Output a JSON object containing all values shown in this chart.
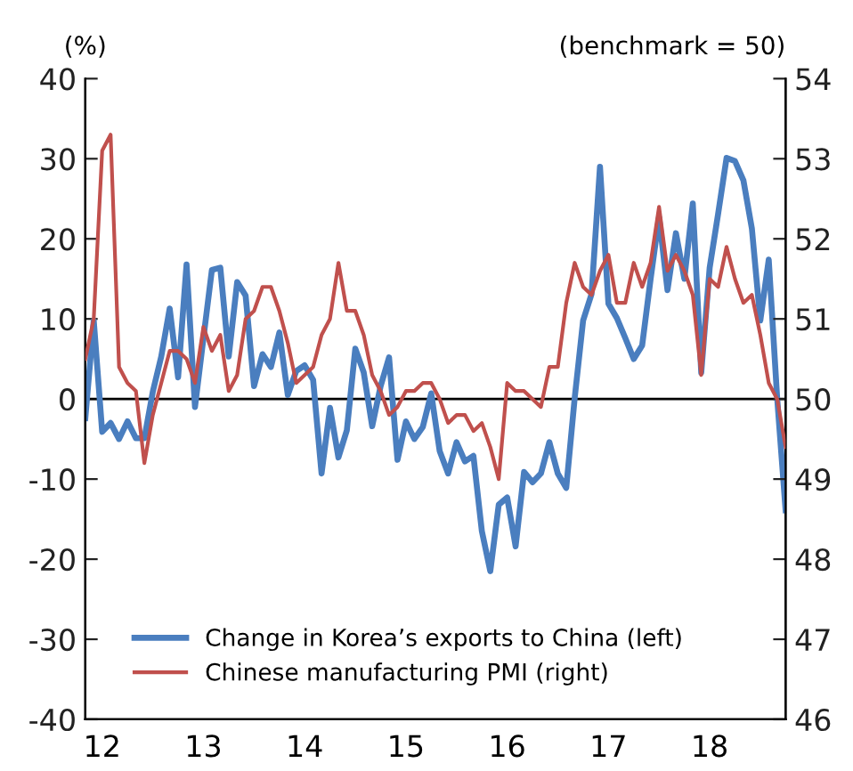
{
  "chart_data": {
    "type": "line",
    "ylabel": "(%)",
    "y2label": "(benchmark = 50)",
    "x": [
      "2012-01",
      "2012-02",
      "2012-03",
      "2012-04",
      "2012-05",
      "2012-06",
      "2012-07",
      "2012-08",
      "2012-09",
      "2012-10",
      "2012-11",
      "2012-12",
      "2013-01",
      "2013-02",
      "2013-03",
      "2013-04",
      "2013-05",
      "2013-06",
      "2013-07",
      "2013-08",
      "2013-09",
      "2013-10",
      "2013-11",
      "2013-12",
      "2014-01",
      "2014-02",
      "2014-03",
      "2014-04",
      "2014-05",
      "2014-06",
      "2014-07",
      "2014-08",
      "2014-09",
      "2014-10",
      "2014-11",
      "2014-12",
      "2015-01",
      "2015-02",
      "2015-03",
      "2015-04",
      "2015-05",
      "2015-06",
      "2015-07",
      "2015-08",
      "2015-09",
      "2015-10",
      "2015-11",
      "2015-12",
      "2016-01",
      "2016-02",
      "2016-03",
      "2016-04",
      "2016-05",
      "2016-06",
      "2016-07",
      "2016-08",
      "2016-09",
      "2016-10",
      "2016-11",
      "2016-12",
      "2017-01",
      "2017-02",
      "2017-03",
      "2017-04",
      "2017-05",
      "2017-06",
      "2017-07",
      "2017-08",
      "2017-09",
      "2017-10",
      "2017-11",
      "2017-12",
      "2018-01",
      "2018-02",
      "2018-03",
      "2018-04",
      "2018-05",
      "2018-06",
      "2018-07",
      "2018-08",
      "2018-09",
      "2018-10",
      "2018-11",
      "2018-12"
    ],
    "series": [
      {
        "name": "Change in Korea’s exports to China (left)",
        "color": "#4a7ebf",
        "values": [
          -2.4,
          9.8,
          -4.1,
          -3,
          -5,
          -2.8,
          -4.9,
          -4.9,
          0.9,
          5.3,
          11.3,
          2.7,
          16.8,
          -1,
          7.6,
          16.1,
          16.4,
          5.3,
          14.6,
          12.9,
          1.6,
          5.6,
          4,
          8.3,
          0.5,
          3.5,
          4.2,
          2.4,
          -9.3,
          -1.1,
          -7.3,
          -3.9,
          6.3,
          3.3,
          -3.4,
          1.6,
          5.2,
          -7.6,
          -2.8,
          -5,
          -3.5,
          0.7,
          -6.5,
          -9.3,
          -5.4,
          -7.8,
          -7.1,
          -16.5,
          -21.5,
          -13.2,
          -12.3,
          -18.4,
          -9.1,
          -10.4,
          -9.3,
          -5.4,
          -9.3,
          -11.1,
          0.1,
          9.8,
          13.1,
          29,
          11.9,
          10.1,
          7.6,
          5,
          6.7,
          15,
          22.7,
          13.6,
          20.7,
          15,
          24.4,
          3.3,
          16.4,
          23.1,
          30.1,
          29.7,
          27.3,
          21.3,
          9.8,
          17.4,
          0.1,
          -13.9
        ]
      },
      {
        "name": "Chinese manufacturing PMI (right)",
        "color": "#c0504d",
        "axis": "y2",
        "values": [
          50.5,
          51.0,
          53.1,
          53.3,
          50.4,
          50.2,
          50.1,
          49.2,
          49.8,
          50.2,
          50.6,
          50.6,
          50.5,
          50.2,
          50.9,
          50.6,
          50.8,
          50.1,
          50.3,
          51.0,
          51.1,
          51.4,
          51.4,
          51.1,
          50.7,
          50.2,
          50.3,
          50.4,
          50.8,
          51.0,
          51.7,
          51.1,
          51.1,
          50.8,
          50.3,
          50.1,
          49.8,
          49.9,
          50.1,
          50.1,
          50.2,
          50.2,
          50.0,
          49.7,
          49.8,
          49.8,
          49.6,
          49.7,
          49.4,
          49.0,
          50.2,
          50.1,
          50.1,
          50.0,
          49.9,
          50.4,
          50.4,
          51.2,
          51.7,
          51.4,
          51.3,
          51.6,
          51.8,
          51.2,
          51.2,
          51.7,
          51.4,
          51.7,
          52.4,
          51.6,
          51.8,
          51.6,
          51.3,
          50.3,
          51.5,
          51.4,
          51.9,
          51.5,
          51.2,
          51.3,
          50.8,
          50.2,
          50.0,
          49.4
        ]
      }
    ],
    "xlim": [
      "2012-01",
      "2018-12"
    ],
    "xticks": [
      {
        "value": "2012-03",
        "label": "12"
      },
      {
        "value": "2013-03",
        "label": "13"
      },
      {
        "value": "2014-03",
        "label": "14"
      },
      {
        "value": "2015-03",
        "label": "15"
      },
      {
        "value": "2016-03",
        "label": "16"
      },
      {
        "value": "2017-03",
        "label": "17"
      },
      {
        "value": "2018-03",
        "label": "18"
      }
    ],
    "ylim": [
      -40,
      40
    ],
    "yticks": [
      -40,
      -30,
      -20,
      -10,
      0,
      10,
      20,
      30,
      40
    ],
    "y2lim": [
      46,
      54
    ],
    "y2ticks": [
      46,
      47,
      48,
      49,
      50,
      51,
      52,
      53,
      54
    ],
    "ref_lines": [
      {
        "axis": "y",
        "value": 0,
        "color": "#000000"
      }
    ],
    "legend": "bottom left",
    "grid": false,
    "marker": "none",
    "line_style": "solid"
  }
}
